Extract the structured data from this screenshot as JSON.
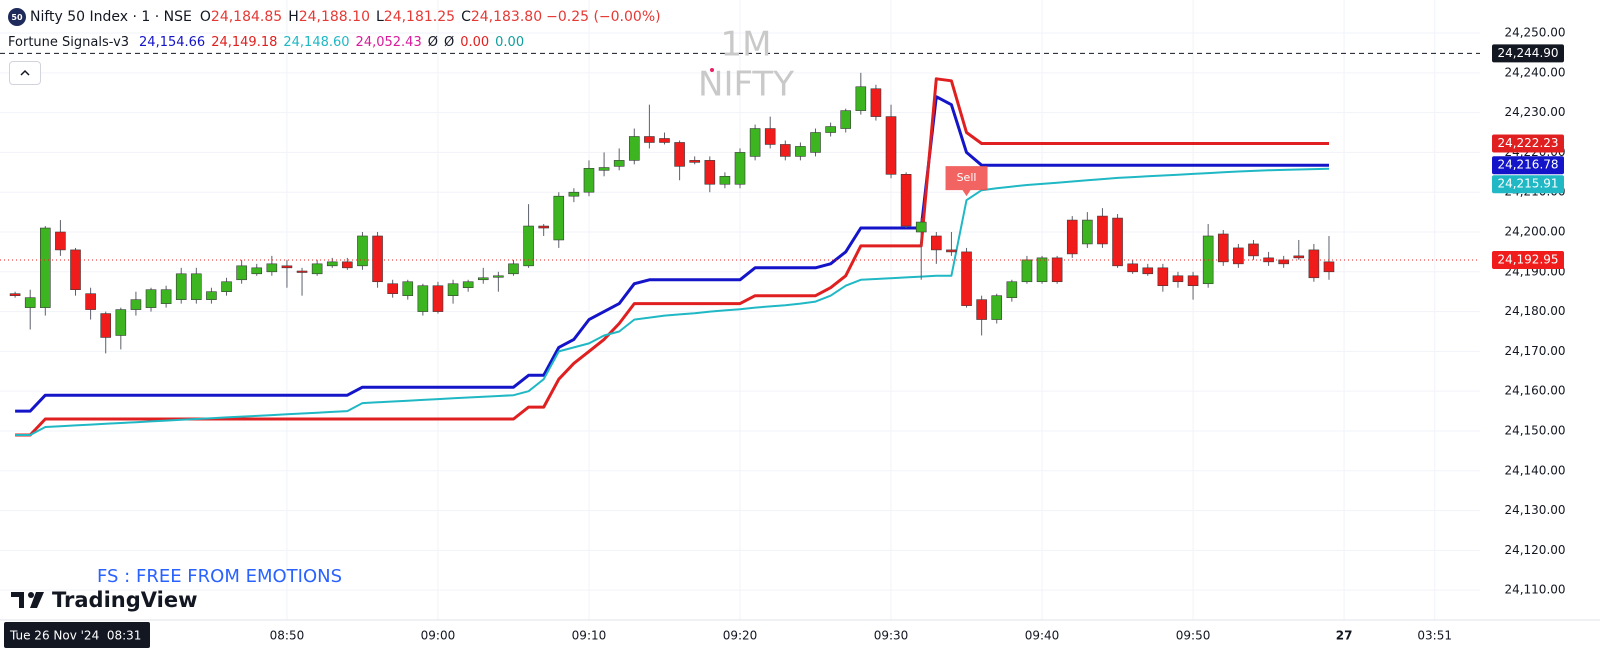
{
  "header": {
    "icon": "50",
    "symbol": "Nifty 50 Index · 1 · NSE",
    "ohlc": [
      {
        "key": "O",
        "value": "24,184.85"
      },
      {
        "key": "H",
        "value": "24,188.10"
      },
      {
        "key": "L",
        "value": "24,181.25"
      },
      {
        "key": "C",
        "value": "24,183.80"
      }
    ],
    "change": "−0.25 (−0.00%)"
  },
  "indicator": {
    "title": "Fortune Signals-v3",
    "values": [
      {
        "text": "24,154.66",
        "color": "#1414c8"
      },
      {
        "text": "24,149.18",
        "color": "#e02020"
      },
      {
        "text": "24,148.60",
        "color": "#1fb8c4"
      },
      {
        "text": "24,052.43",
        "color": "#d81b9a"
      },
      {
        "text": "Ø",
        "color": "#131722"
      },
      {
        "text": "Ø",
        "color": "#131722"
      },
      {
        "text": "0.00",
        "color": "#e02020"
      },
      {
        "text": "0.00",
        "color": "#109e9e"
      }
    ]
  },
  "watermark": [
    "1M",
    "NIFTY"
  ],
  "tagline": "FS : FREE FROM EMOTIONS",
  "brand": "TradingView",
  "crosshair_label": "Tue 26 Nov '24  08:31",
  "chart_data": {
    "type": "candlestick",
    "x": [
      "08:32",
      "08:33",
      "08:34",
      "08:35",
      "08:36",
      "08:37",
      "08:38",
      "08:39",
      "08:40",
      "08:41",
      "08:42",
      "08:43",
      "08:44",
      "08:45",
      "08:46",
      "08:47",
      "08:48",
      "08:49",
      "08:50",
      "08:51",
      "08:52",
      "08:53",
      "08:54",
      "08:55",
      "08:56",
      "08:57",
      "08:58",
      "08:59",
      "09:00",
      "09:01",
      "09:02",
      "09:03",
      "09:04",
      "09:05",
      "09:06",
      "09:07",
      "09:08",
      "09:09",
      "09:10",
      "09:11",
      "09:12",
      "09:13",
      "09:14",
      "09:15",
      "09:16",
      "09:17",
      "09:18",
      "09:19",
      "09:20",
      "09:21",
      "09:22",
      "09:23",
      "09:24",
      "09:25",
      "09:26",
      "09:27",
      "09:28",
      "09:29",
      "09:30",
      "09:31",
      "09:32",
      "09:33",
      "09:34",
      "09:35",
      "09:36",
      "09:37",
      "09:38",
      "09:39",
      "09:40",
      "09:41",
      "09:42",
      "09:43",
      "09:44",
      "09:45",
      "09:46",
      "09:47",
      "09:48",
      "09:49",
      "09:50",
      "09:51",
      "09:52",
      "09:53",
      "09:54",
      "09:55",
      "09:56",
      "09:57",
      "09:58",
      "09:59"
    ],
    "open": [
      24184.5,
      24181,
      24181,
      24200,
      24195.5,
      24184.5,
      24179.5,
      24174,
      24180.5,
      24181,
      24182,
      24183,
      24183,
      24183,
      24185,
      24188,
      24189.5,
      24190,
      24191.5,
      24190.2,
      24189.5,
      24191.5,
      24192.5,
      24191.5,
      24199,
      24187,
      24184,
      24180,
      24186.5,
      24184,
      24186,
      24188,
      24188.8,
      24189.5,
      24191.5,
      24201.5,
      24198,
      24209,
      24210,
      24215.5,
      24216.5,
      24218,
      24224,
      24223.5,
      24222.5,
      24218,
      24218,
      24212,
      24212,
      24219,
      24226,
      24222,
      24219,
      24220,
      24225,
      24226,
      24230.5,
      24236,
      24229,
      24214.5,
      24200,
      24199,
      24195.5,
      24195,
      24183,
      24178,
      24183.5,
      24187.5,
      24187.5,
      24193.5,
      24203,
      24197,
      24204,
      24203.5,
      24192,
      24191,
      24191,
      24189,
      24189,
      24187,
      24199.5,
      24196,
      24197,
      24193.5,
      24193,
      24194,
      24195.5,
      24192.5
    ],
    "high": [
      24185,
      24185.5,
      24201.5,
      24203,
      24196,
      24186,
      24180,
      24181,
      24185,
      24186,
      24186.5,
      24191,
      24191,
      24186,
      24188.5,
      24193,
      24192,
      24194,
      24193,
      24191,
      24193,
      24193.5,
      24193.5,
      24200,
      24200,
      24188,
      24188,
      24187,
      24187.5,
      24188,
      24188,
      24191,
      24190,
      24193,
      24207,
      24202,
      24210,
      24211,
      24218,
      24220,
      24221,
      24226,
      24232,
      24225,
      24223,
      24219,
      24219,
      24215,
      24221,
      24227,
      24229,
      24223,
      24222.5,
      24226,
      24227.5,
      24231,
      24240,
      24237,
      24232,
      24215,
      24203.5,
      24200,
      24200,
      24196,
      24184,
      24184.5,
      24188,
      24194,
      24194,
      24194,
      24204,
      24205,
      24206,
      24204.5,
      24193,
      24192,
      24192,
      24190,
      24190,
      24202,
      24200.5,
      24197,
      24198,
      24195,
      24194,
      24198,
      24197,
      24199
    ],
    "low": [
      24183.5,
      24175.5,
      24179,
      24194,
      24184,
      24178,
      24169.5,
      24170.5,
      24179,
      24180,
      24181,
      24182,
      24182,
      24182,
      24184,
      24187,
      24189,
      24189,
      24186,
      24184,
      24189,
      24191,
      24190.5,
      24190.5,
      24186,
      24183.5,
      24183,
      24179,
      24179.5,
      24182,
      24185,
      24187,
      24185,
      24189,
      24191,
      24199,
      24196,
      24207.5,
      24209,
      24214,
      24215.5,
      24217,
      24221,
      24222,
      24213,
      24217,
      24210,
      24211,
      24211,
      24218,
      24221,
      24218,
      24218,
      24219,
      24224,
      24225,
      24229.5,
      24228,
      24213.5,
      24201,
      24188,
      24192,
      24194,
      24181,
      24174,
      24177,
      24182.5,
      24187,
      24187,
      24187,
      24193.5,
      24196,
      24196,
      24191,
      24189.5,
      24189,
      24185,
      24186,
      24183,
      24186,
      24191.5,
      24191,
      24193,
      24191.5,
      24191,
      24193,
      24187.5,
      24188
    ],
    "close": [
      24184,
      24183.5,
      24201,
      24195.5,
      24185.5,
      24180.5,
      24173.5,
      24180.5,
      24183,
      24185.5,
      24185.5,
      24189.5,
      24189.5,
      24185,
      24187.5,
      24191.5,
      24191,
      24192,
      24191,
      24189.9,
      24192,
      24192.5,
      24191,
      24199,
      24187.5,
      24184.5,
      24187.5,
      24186.5,
      24180,
      24187,
      24187.5,
      24188.5,
      24189,
      24192,
      24201.5,
      24201,
      24209,
      24210,
      24216,
      24216.2,
      24218,
      24224,
      24222.5,
      24222.5,
      24216.5,
      24217.5,
      24212,
      24214,
      24220,
      24226,
      24222,
      24219,
      24221.5,
      24225,
      24226.5,
      24230.5,
      24236.5,
      24229,
      24214.5,
      24201.5,
      24202.5,
      24195.5,
      24195,
      24181.5,
      24178,
      24184,
      24187.5,
      24193,
      24193.5,
      24187.5,
      24194.5,
      24203,
      24197,
      24191.5,
      24190,
      24189.5,
      24186.5,
      24187.5,
      24186.5,
      24199,
      24192.5,
      24192,
      24194,
      24192.5,
      24192,
      24193.5,
      24188.5,
      24190
    ],
    "up_color": "#3cb521",
    "down_color": "#f01b1b",
    "lines": [
      {
        "color": "#1414c8",
        "values": [
          24155,
          24155,
          24159,
          24159,
          24159,
          24159,
          24159,
          24159,
          24159,
          24159,
          24159,
          24159,
          24159,
          24159,
          24159,
          24159,
          24159,
          24159,
          24159,
          24159,
          24159,
          24159,
          24159,
          24161,
          24161,
          24161,
          24161,
          24161,
          24161,
          24161,
          24161,
          24161,
          24161,
          24161,
          24164,
          24164,
          24171,
          24173,
          24178,
          24180,
          24182,
          24187,
          24188,
          24188,
          24188,
          24188,
          24188,
          24188,
          24188,
          24191,
          24191,
          24191,
          24191,
          24191,
          24192,
          24195,
          24201,
          24201,
          24201,
          24201,
          24201,
          24234,
          24232,
          24220,
          24216.78,
          24216.78,
          24216.78,
          24216.78,
          24216.78,
          24216.78,
          24216.78,
          24216.78,
          24216.78,
          24216.78,
          24216.78,
          24216.78,
          24216.78,
          24216.78,
          24216.78,
          24216.78,
          24216.78,
          24216.78,
          24216.78,
          24216.78,
          24216.78,
          24216.78,
          24216.78,
          24216.78
        ]
      },
      {
        "color": "#e02020",
        "values": [
          24149,
          24149,
          24153,
          24153,
          24153,
          24153,
          24153,
          24153,
          24153,
          24153,
          24153,
          24153,
          24153,
          24153,
          24153,
          24153,
          24153,
          24153,
          24153,
          24153,
          24153,
          24153,
          24153,
          24153,
          24153,
          24153,
          24153,
          24153,
          24153,
          24153,
          24153,
          24153,
          24153,
          24153,
          24156,
          24156,
          24163,
          24167,
          24170,
          24173,
          24177,
          24182,
          24182,
          24182,
          24182,
          24182,
          24182,
          24182,
          24182,
          24184,
          24184,
          24184,
          24184,
          24184,
          24186,
          24189,
          24196.5,
          24196.5,
          24196.5,
          24196.5,
          24196.5,
          24238.5,
          24238,
          24225,
          24222.23,
          24222.23,
          24222.23,
          24222.23,
          24222.23,
          24222.23,
          24222.23,
          24222.23,
          24222.23,
          24222.23,
          24222.23,
          24222.23,
          24222.23,
          24222.23,
          24222.23,
          24222.23,
          24222.23,
          24222.23,
          24222.23,
          24222.23,
          24222.23,
          24222.23,
          24222.23,
          24222.23
        ]
      },
      {
        "color": "#1fb8c4",
        "values": [
          24149,
          24149,
          24151,
          24151.2,
          24151.4,
          24151.6,
          24151.8,
          24152,
          24152.2,
          24152.4,
          24152.6,
          24152.8,
          24153,
          24153.2,
          24153.4,
          24153.6,
          24153.8,
          24154,
          24154.2,
          24154.4,
          24154.6,
          24154.8,
          24155,
          24157,
          24157.2,
          24157.4,
          24157.6,
          24157.8,
          24158,
          24158.2,
          24158.4,
          24158.6,
          24158.8,
          24159,
          24160,
          24163,
          24170,
          24171,
          24172,
          24174,
          24175,
          24178,
          24178.5,
          24179,
          24179.3,
          24179.6,
          24180,
          24180.3,
          24180.6,
          24181,
          24181.3,
          24181.6,
          24182,
          24182.5,
          24184,
          24186.5,
          24188,
          24188.2,
          24188.4,
          24188.6,
          24188.8,
          24189,
          24189,
          24208,
          24210.5,
          24211,
          24211.4,
          24211.8,
          24212.1,
          24212.4,
          24212.7,
          24213,
          24213.3,
          24213.6,
          24213.8,
          24214,
          24214.2,
          24214.4,
          24214.6,
          24214.8,
          24215,
          24215.2,
          24215.35,
          24215.5,
          24215.6,
          24215.7,
          24215.8,
          24215.91
        ]
      }
    ],
    "signals": [
      {
        "x": "09:35",
        "label": "Sell",
        "color": "#f05350"
      }
    ],
    "xlim": [
      "08:31",
      "10:09"
    ],
    "xticks": [
      "08:50",
      "09:00",
      "09:10",
      "09:20",
      "09:30",
      "09:40",
      "09:50",
      {
        "value": "10:00",
        "label": "27"
      },
      {
        "value": "10:06",
        "label": "03:51"
      }
    ],
    "ylim": [
      24102.5,
      24258.3
    ],
    "yticks": [
      {
        "value": 24110,
        "label": "24,110.00"
      },
      {
        "value": 24120,
        "label": "24,120.00"
      },
      {
        "value": 24130,
        "label": "24,130.00"
      },
      {
        "value": 24140,
        "label": "24,140.00"
      },
      {
        "value": 24150,
        "label": "24,150.00"
      },
      {
        "value": 24160,
        "label": "24,160.00"
      },
      {
        "value": 24170,
        "label": "24,170.00"
      },
      {
        "value": 24180,
        "label": "24,180.00"
      },
      {
        "value": 24190,
        "label": "24,190.00"
      },
      {
        "value": 24200,
        "label": "24,200.00"
      },
      {
        "value": 24210,
        "label": "24,210.00"
      },
      {
        "value": 24220,
        "label": "24,220.00"
      },
      {
        "value": 24230,
        "label": "24,230.00"
      },
      {
        "value": 24240,
        "label": "24,240.00"
      },
      {
        "value": 24250,
        "label": "24,250.00"
      }
    ],
    "price_tags": [
      {
        "value": 24244.9,
        "label": "24,244.90",
        "color": "#131722",
        "line": "dashed"
      },
      {
        "value": 24222.23,
        "label": "24,222.23",
        "color": "#e02020"
      },
      {
        "value": 24216.78,
        "label": "24,216.78",
        "color": "#1414c8"
      },
      {
        "value": 24215.91,
        "label": "24,215.91",
        "color": "#1fb8c4"
      },
      {
        "value": 24192.95,
        "label": "24,192.95",
        "color": "#f01b1b",
        "line": "dotted"
      }
    ],
    "grid": true
  }
}
